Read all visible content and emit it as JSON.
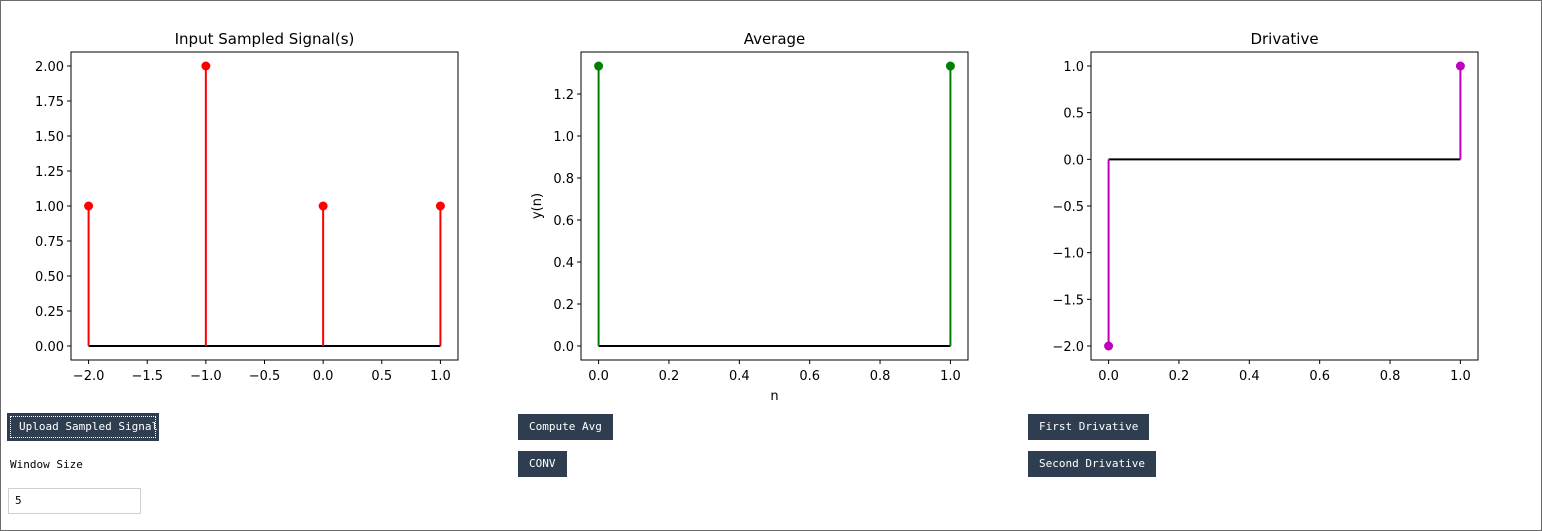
{
  "buttons": {
    "upload": "Upload Sampled Signal",
    "compute_avg": "Compute Avg",
    "conv": "CONV",
    "first_derivative": "First Drivative",
    "second_derivative": "Second Drivative"
  },
  "window_size": {
    "label": "Window Size",
    "value": "5"
  },
  "chart_data": [
    {
      "type": "stem",
      "title": "Input Sampled Signal(s)",
      "xlabel": "",
      "ylabel": "",
      "x": [
        -2,
        -1,
        0,
        1
      ],
      "y": [
        1,
        2,
        1,
        1
      ],
      "xlim": [
        -2.15,
        1.15
      ],
      "ylim": [
        -0.1,
        2.1
      ],
      "xticks": [
        -2.0,
        -1.5,
        -1.0,
        -0.5,
        0.0,
        0.5,
        1.0
      ],
      "xtick_labels": [
        "−2.0",
        "−1.5",
        "−1.0",
        "−0.5",
        "0.0",
        "0.5",
        "1.0"
      ],
      "yticks": [
        0,
        0.25,
        0.5,
        0.75,
        1.0,
        1.25,
        1.5,
        1.75,
        2.0
      ],
      "ytick_labels": [
        "0.00",
        "0.25",
        "0.50",
        "0.75",
        "1.00",
        "1.25",
        "1.50",
        "1.75",
        "2.00"
      ],
      "color": "#ff0000",
      "grid": false
    },
    {
      "type": "stem",
      "title": "Average",
      "xlabel": "n",
      "ylabel": "y(n)",
      "x": [
        0,
        1
      ],
      "y": [
        1.3333,
        1.3333
      ],
      "xlim": [
        -0.05,
        1.05
      ],
      "ylim": [
        -0.0667,
        1.4
      ],
      "xticks": [
        0,
        0.2,
        0.4,
        0.6,
        0.8,
        1.0
      ],
      "xtick_labels": [
        "0.0",
        "0.2",
        "0.4",
        "0.6",
        "0.8",
        "1.0"
      ],
      "yticks": [
        0,
        0.2,
        0.4,
        0.6,
        0.8,
        1.0,
        1.2
      ],
      "ytick_labels": [
        "0.0",
        "0.2",
        "0.4",
        "0.6",
        "0.8",
        "1.0",
        "1.2"
      ],
      "color": "#008000",
      "grid": false
    },
    {
      "type": "stem",
      "title": "Drivative",
      "xlabel": "",
      "ylabel": "",
      "x": [
        0,
        1
      ],
      "y": [
        -2,
        1
      ],
      "xlim": [
        -0.05,
        1.05
      ],
      "ylim": [
        -2.15,
        1.15
      ],
      "xticks": [
        0,
        0.2,
        0.4,
        0.6,
        0.8,
        1.0
      ],
      "xtick_labels": [
        "0.0",
        "0.2",
        "0.4",
        "0.6",
        "0.8",
        "1.0"
      ],
      "yticks": [
        -2.0,
        -1.5,
        -1.0,
        -0.5,
        0.0,
        0.5,
        1.0
      ],
      "ytick_labels": [
        "−2.0",
        "−1.5",
        "−1.0",
        "−0.5",
        "0.0",
        "0.5",
        "1.0"
      ],
      "color": "#bf00bf",
      "grid": false
    }
  ]
}
